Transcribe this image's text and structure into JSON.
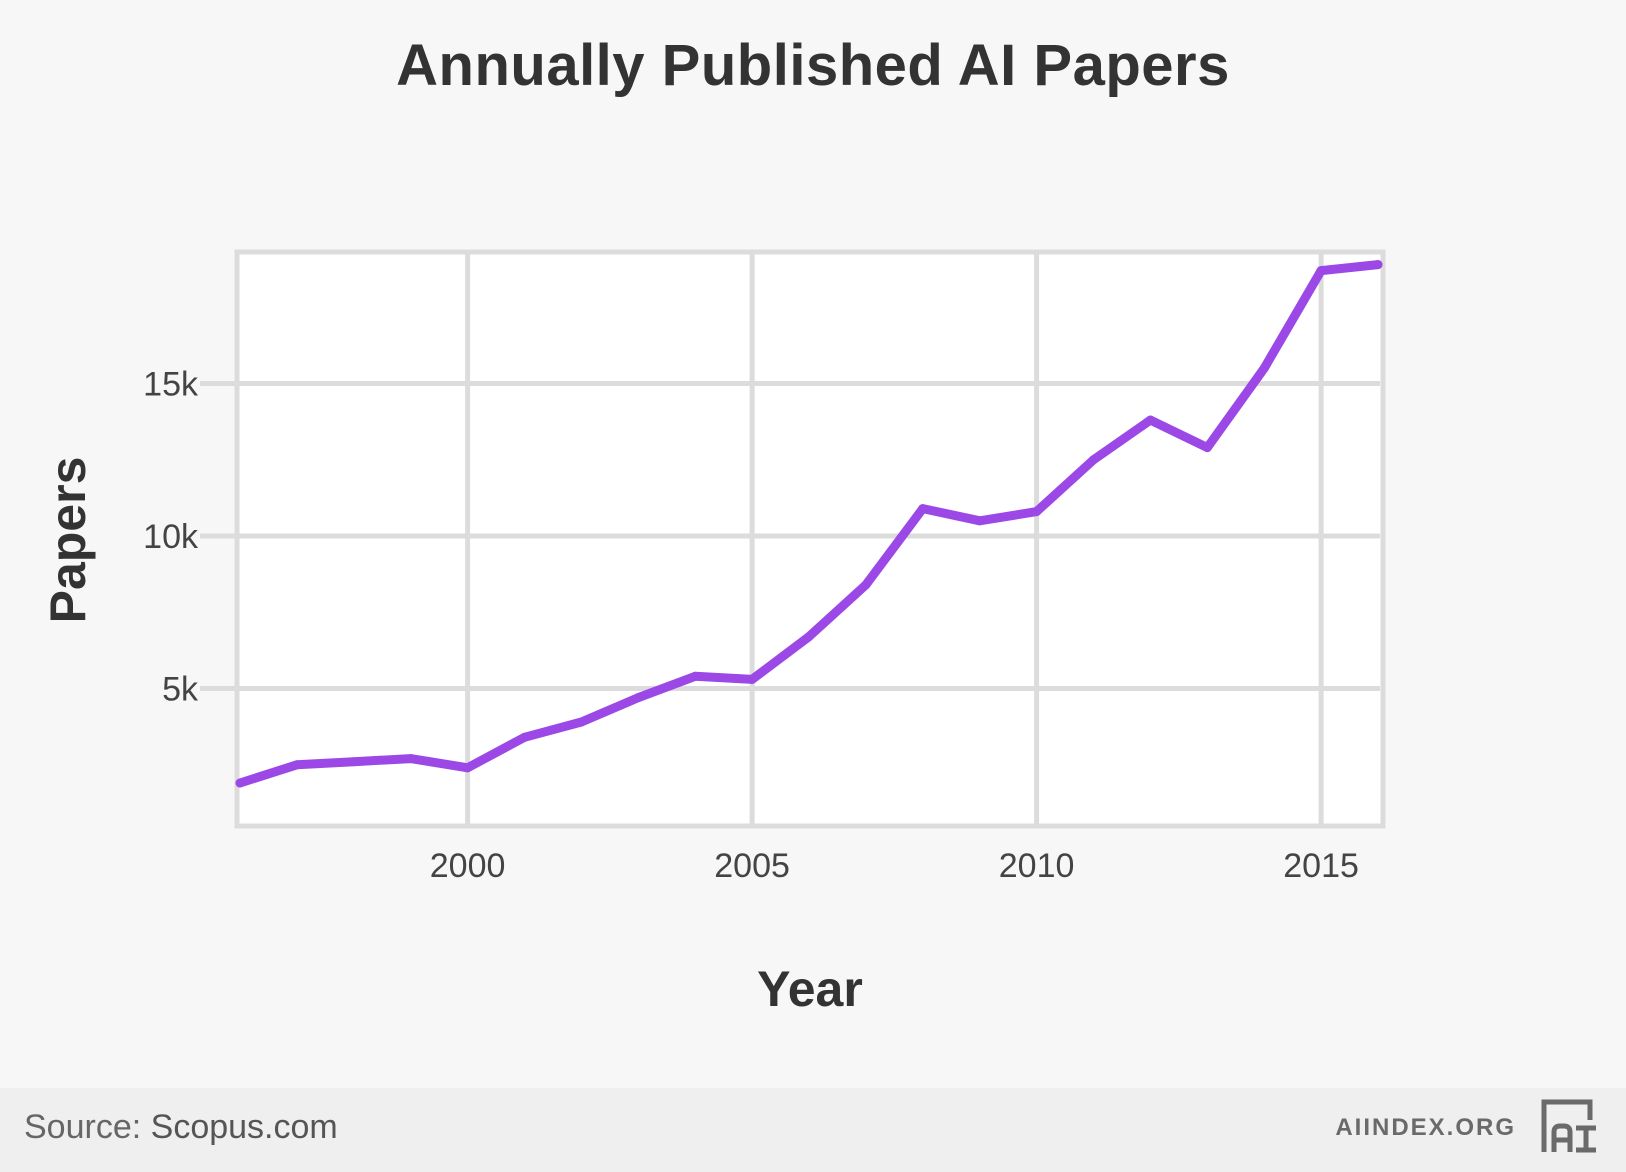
{
  "chart_data": {
    "type": "line",
    "title": "Annually Published AI Papers",
    "xlabel": "Year",
    "ylabel": "Papers",
    "x": [
      1996,
      1997,
      1998,
      1999,
      2000,
      2001,
      2002,
      2003,
      2004,
      2005,
      2006,
      2007,
      2008,
      2009,
      2010,
      2011,
      2012,
      2013,
      2014,
      2015,
      2016
    ],
    "series": [
      {
        "values": [
          1900,
          2500,
          2600,
          2700,
          2400,
          3400,
          3900,
          4700,
          5400,
          5300,
          6700,
          8400,
          10900,
          10500,
          10800,
          12500,
          13800,
          12900,
          15500,
          18700,
          18900
        ]
      }
    ],
    "xticks": [
      "2000",
      "2005",
      "2010",
      "2015"
    ],
    "yticks": [
      "5k",
      "10k",
      "15k"
    ],
    "xlim": [
      1996,
      2016
    ],
    "ylim": [
      0,
      19500
    ],
    "grid": true,
    "line_color": "#9b48e6"
  },
  "footer": {
    "source_prefix": "Source:",
    "source_name": "Scopus.com",
    "brand": "AIINDEX.ORG",
    "logo_icon": "ai-index-logo-icon"
  }
}
